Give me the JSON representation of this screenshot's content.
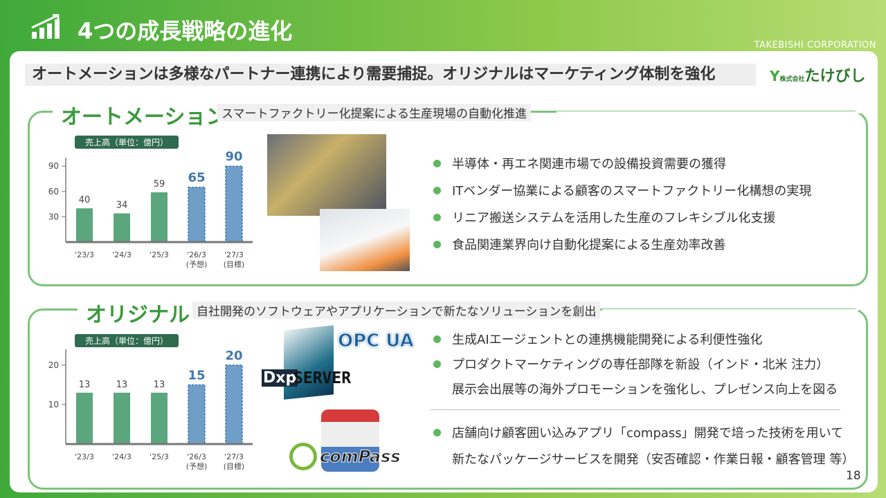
{
  "header": {
    "title": "4つの成長戦略の進化",
    "company": "TAKEBISHI CORPORATION",
    "headline": "オートメーションは多様なパートナー連携により需要捕捉。オリジナルはマーケティング体制を強化",
    "logo_small": "株式会社",
    "logo": "たけびし"
  },
  "sections": [
    {
      "title": "オートメーション",
      "subtitle": "スマートファクトリー化提案による生産現場の自動化推進",
      "bullets": [
        "半導体・再エネ関連市場での設備投資需要の獲得",
        "ITベンダー協業による顧客のスマートファクトリー化構想の実現",
        "リニア搬送システムを活用した生産のフレキシブル化支援",
        "食品関連業界向け自動化提案による生産効率改善"
      ]
    },
    {
      "title": "オリジナル",
      "subtitle": "自社開発のソフトウェアやアプリケーションで新たなソリューションを創出",
      "bullets": [
        "生成AIエージェントとの連携機能開発による利便性強化",
        "プロダクトマーケティングの専任部隊を新設（インド・北米 注力）",
        "展示会出展等の海外プロモーションを強化し、プレゼンス向上を図る",
        "店舗向け顧客囲い込みアプリ「compass」開発で培った技術を用いて",
        "新たなパッケージサービスを開発（安否確認・作業日報・顧客管理 等）"
      ],
      "logos": [
        "OPC UA",
        "Dxp",
        "SERVER",
        "comPass"
      ]
    }
  ],
  "page_number": "18",
  "chart_data": [
    {
      "type": "bar",
      "y_label": "売上高（単位：億円）",
      "categories": [
        "'23/3",
        "'24/3",
        "'25/3",
        "'26/3\n(予想)",
        "'27/3\n(目標)"
      ],
      "values": [
        40,
        34,
        59,
        65,
        90
      ],
      "colors": [
        "#5ba67c",
        "#5ba67c",
        "#5ba67c",
        "#6f9ec8",
        "#6f9ec8"
      ],
      "ylim": [
        0,
        100
      ],
      "yticks": [
        30,
        60,
        90
      ]
    },
    {
      "type": "bar",
      "y_label": "売上高（単位：億円）",
      "categories": [
        "'23/3",
        "'24/3",
        "'25/3",
        "'26/3\n(予想)",
        "'27/3\n(目標)"
      ],
      "values": [
        13,
        13,
        13,
        15,
        20
      ],
      "colors": [
        "#5ba67c",
        "#5ba67c",
        "#5ba67c",
        "#6f9ec8",
        "#6f9ec8"
      ],
      "ylim": [
        0,
        24
      ],
      "yticks": [
        10,
        20
      ]
    }
  ]
}
